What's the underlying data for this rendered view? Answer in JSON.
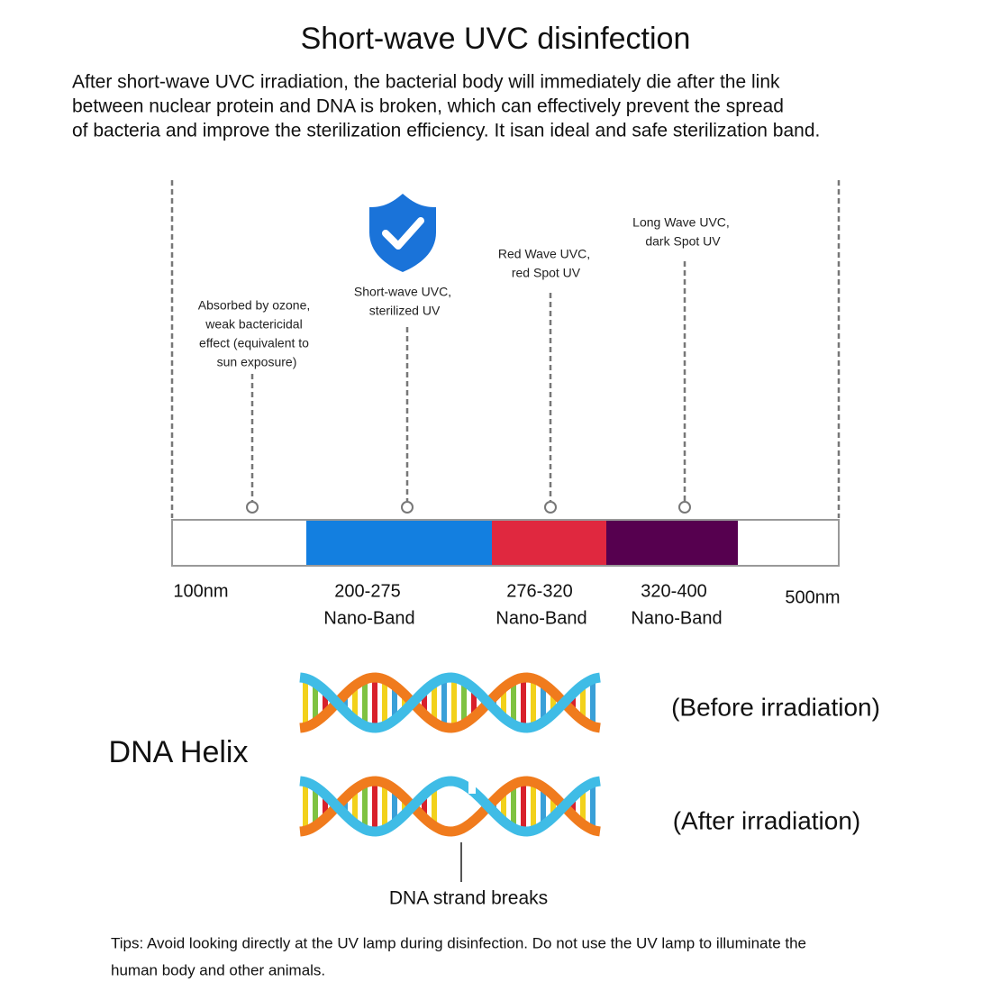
{
  "title": "Short-wave UVC disinfection",
  "intro": [
    "After short-wave UVC irradiation, the bacterial body will immediately die after the link",
    "between nuclear protein and DNA is broken, which can effectively prevent the spread",
    "of bacteria and improve the sterilization efficiency. It isan ideal and safe sterilization band."
  ],
  "annotations": [
    {
      "lines": [
        "Absorbed by ozone,",
        "weak bactericidal",
        "effect (equivalent to",
        "sun exposure)"
      ]
    },
    {
      "lines": [
        "Short-wave UVC,",
        "sterilized UV"
      ]
    },
    {
      "lines": [
        "Red Wave UVC,",
        "red Spot UV"
      ]
    },
    {
      "lines": [
        "Long Wave UVC,",
        "dark Spot UV"
      ]
    }
  ],
  "spectrum": {
    "start": "100nm",
    "end": "500nm",
    "bands": [
      {
        "range": "200-275",
        "label": "Nano-Band"
      },
      {
        "range": "276-320",
        "label": "Nano-Band"
      },
      {
        "range": "320-400",
        "label": "Nano-Band"
      }
    ]
  },
  "dna": {
    "title": "DNA Helix",
    "before": "(Before irradiation)",
    "after": "(After irradiation)",
    "break": "DNA strand breaks"
  },
  "tips": [
    "Tips: Avoid looking directly at the UV lamp during disinfection. Do not use the UV lamp to illuminate the",
    "human body and other animals."
  ]
}
